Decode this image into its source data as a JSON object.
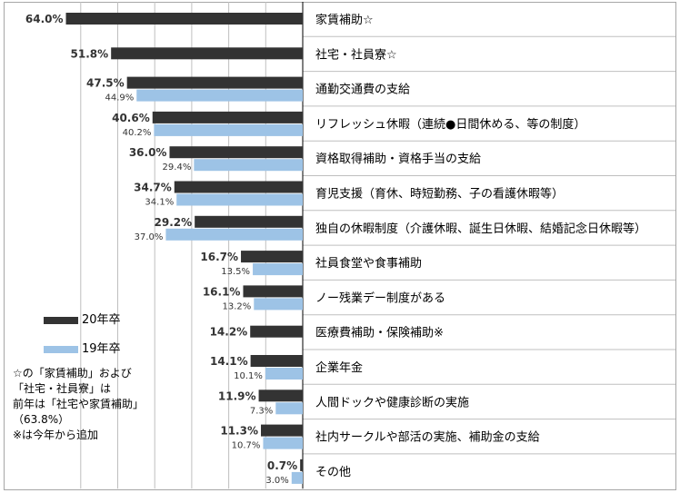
{
  "chart_data": {
    "type": "bar",
    "orientation": "horizontal",
    "direction": "right-to-left",
    "categories": [
      "家賃補助☆",
      "社宅・社員寮☆",
      "通勤交通費の支給",
      "リフレッシュ休暇（連続●日間休める、等の制度）",
      "資格取得補助・資格手当の支給",
      "育児支援（育休、時短勤務、子の看護休暇等）",
      "独自の休暇制度（介護休暇、誕生日休暇、結婚記念日休暇等）",
      "社員食堂や食事補助",
      "ノー残業デー制度がある",
      "医療費補助・保険補助※",
      "企業年金",
      "人間ドックや健康診断の実施",
      "社内サークルや部活の実施、補助金の支給",
      "その他"
    ],
    "series": [
      {
        "name": "20年卒",
        "color": "#333333",
        "values": [
          64.0,
          51.8,
          47.5,
          40.6,
          36.0,
          34.7,
          29.2,
          16.7,
          16.1,
          14.2,
          14.1,
          11.9,
          11.3,
          0.7
        ],
        "labels": [
          "64.0%",
          "51.8%",
          "47.5%",
          "40.6%",
          "36.0%",
          "34.7%",
          "29.2%",
          "16.7%",
          "16.1%",
          "14.2%",
          "14.1%",
          "11.9%",
          "11.3%",
          "0.7%"
        ]
      },
      {
        "name": "19年卒",
        "color": "#9dc3e6",
        "values": [
          null,
          null,
          44.9,
          40.2,
          29.4,
          34.1,
          37.0,
          13.5,
          13.2,
          null,
          10.1,
          7.3,
          10.7,
          3.0
        ],
        "labels": [
          "",
          "",
          "44.9%",
          "40.2%",
          "29.4%",
          "34.1%",
          "37.0%",
          "13.5%",
          "13.2%",
          "",
          "10.1%",
          "7.3%",
          "10.7%",
          "3.0%"
        ]
      }
    ],
    "xlim": [
      0,
      70
    ],
    "grid": true,
    "legend_position": "left-middle"
  },
  "legend": {
    "items": [
      {
        "name": "20年卒",
        "color": "#333333"
      },
      {
        "name": "19年卒",
        "color": "#9dc3e6"
      }
    ]
  },
  "note": "☆の「家賃補助」および\n「社宅・社員寮」は\n前年は「社宅や家賃補助」\n（63.8%）\n※は今年から追加"
}
